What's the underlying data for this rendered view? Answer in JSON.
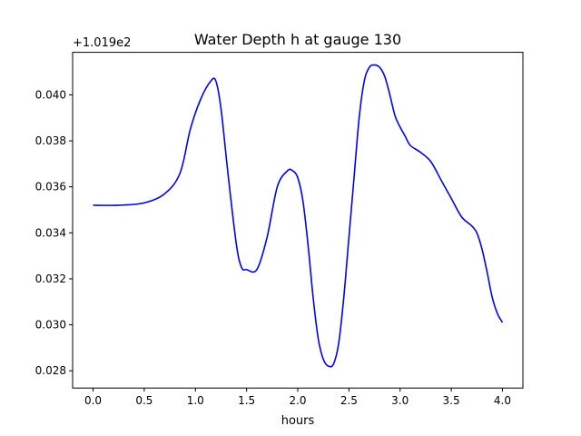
{
  "chart_data": {
    "type": "line",
    "title": "Water Depth h at gauge 130",
    "xlabel": "hours",
    "ylabel": "",
    "y_offset_label": "+1.019e2",
    "xlim": [
      -0.2,
      4.2
    ],
    "ylim": [
      0.02725,
      0.04185
    ],
    "x_ticks": [
      0.0,
      0.5,
      1.0,
      1.5,
      2.0,
      2.5,
      3.0,
      3.5,
      4.0
    ],
    "x_tick_labels": [
      "0.0",
      "0.5",
      "1.0",
      "1.5",
      "2.0",
      "2.5",
      "3.0",
      "3.5",
      "4.0"
    ],
    "y_ticks": [
      0.028,
      0.03,
      0.032,
      0.034,
      0.036,
      0.038,
      0.04
    ],
    "y_tick_labels": [
      "0.028",
      "0.030",
      "0.032",
      "0.034",
      "0.036",
      "0.038",
      "0.040"
    ],
    "grid": false,
    "series": [
      {
        "color": "#0000ff",
        "x": [
          0.0,
          0.25,
          0.5,
          0.7,
          0.85,
          0.95,
          1.05,
          1.15,
          1.2,
          1.25,
          1.32,
          1.4,
          1.45,
          1.5,
          1.6,
          1.7,
          1.8,
          1.9,
          1.95,
          2.0,
          2.05,
          2.1,
          2.15,
          2.2,
          2.25,
          2.3,
          2.35,
          2.4,
          2.45,
          2.5,
          2.55,
          2.6,
          2.65,
          2.7,
          2.75,
          2.8,
          2.85,
          2.9,
          2.95,
          3.0,
          3.05,
          3.1,
          3.2,
          3.3,
          3.4,
          3.5,
          3.6,
          3.7,
          3.75,
          3.8,
          3.85,
          3.9,
          3.95,
          4.0
        ],
        "y": [
          0.0352,
          0.0352,
          0.0353,
          0.0357,
          0.0366,
          0.0385,
          0.0398,
          0.0406,
          0.0406,
          0.0394,
          0.0365,
          0.0335,
          0.0325,
          0.0324,
          0.0324,
          0.0338,
          0.036,
          0.0367,
          0.0367,
          0.0364,
          0.0354,
          0.0335,
          0.0312,
          0.0294,
          0.0285,
          0.0282,
          0.0283,
          0.0292,
          0.0312,
          0.0338,
          0.0364,
          0.039,
          0.0406,
          0.0412,
          0.0413,
          0.0412,
          0.0408,
          0.04,
          0.0391,
          0.0386,
          0.0382,
          0.0378,
          0.0375,
          0.0371,
          0.0363,
          0.0355,
          0.0347,
          0.0343,
          0.034,
          0.0333,
          0.0323,
          0.0312,
          0.0305,
          0.0301
        ]
      }
    ]
  }
}
